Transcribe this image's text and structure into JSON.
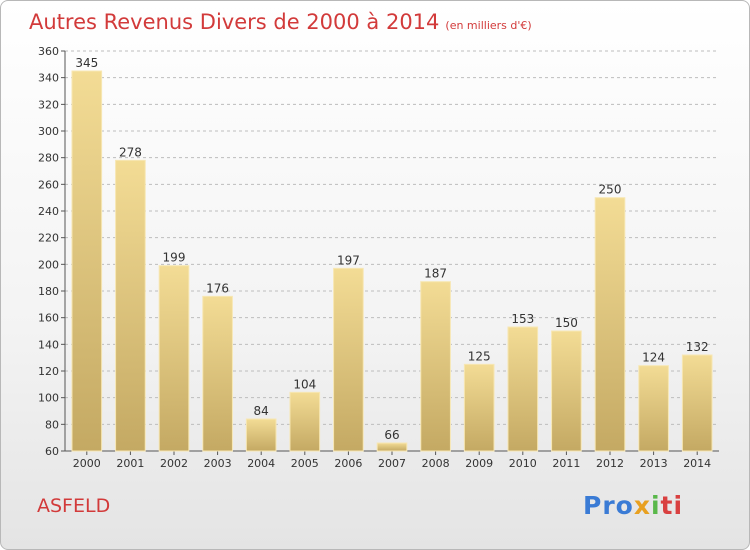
{
  "title": "Autres Revenus Divers de 2000 à 2014",
  "subtitle": "(en milliers d'€)",
  "commune": "ASFELD",
  "brand": {
    "p1": "Pro",
    "p2": "x",
    "p3": "i",
    "p4": "ti"
  },
  "colors": {
    "title": "#d23a3a",
    "bar_top": "#f3dc95",
    "bar_bottom": "#c4a963",
    "grid": "#bdbdbd"
  },
  "chart_data": {
    "type": "bar",
    "categories": [
      "2000",
      "2001",
      "2002",
      "2003",
      "2004",
      "2005",
      "2006",
      "2007",
      "2008",
      "2009",
      "2010",
      "2011",
      "2012",
      "2013",
      "2014"
    ],
    "values": [
      345,
      278,
      199,
      176,
      84,
      104,
      197,
      66,
      187,
      125,
      153,
      150,
      250,
      124,
      132
    ],
    "title": "Autres Revenus Divers de 2000 à 2014",
    "xlabel": "",
    "ylabel": "",
    "ylim": [
      60,
      360
    ],
    "yticks": [
      60,
      80,
      100,
      120,
      140,
      160,
      180,
      200,
      220,
      240,
      260,
      280,
      300,
      320,
      340,
      360
    ],
    "grid": true,
    "data_labels": true
  }
}
